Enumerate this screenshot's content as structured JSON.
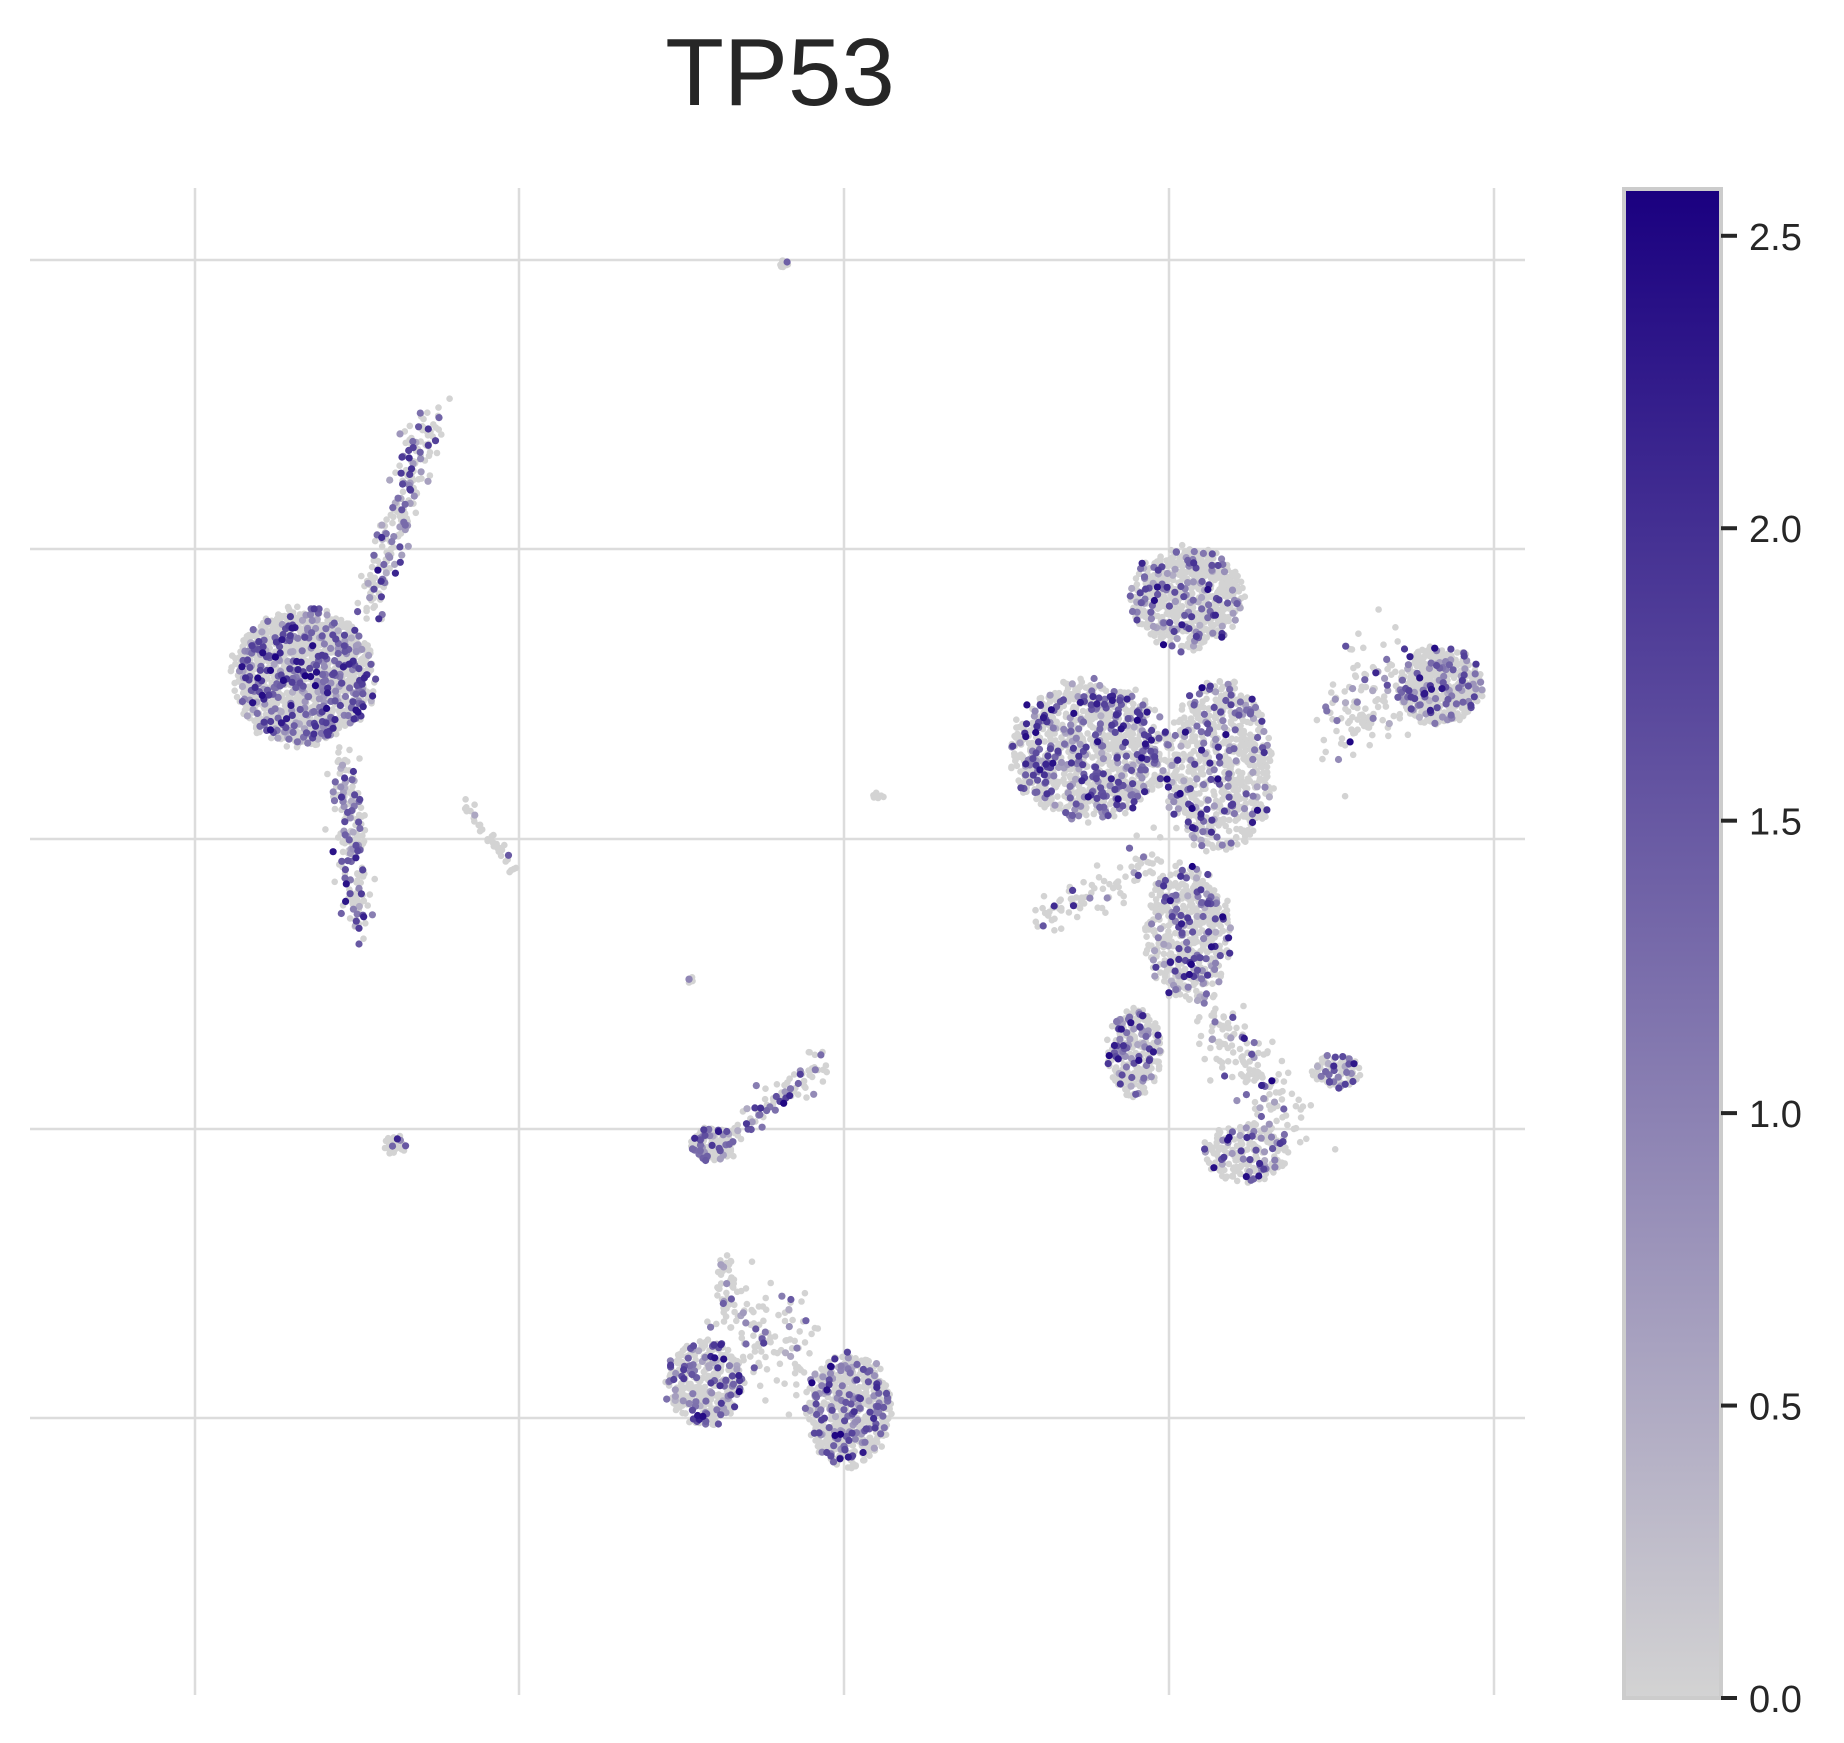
{
  "chart_data": {
    "type": "scatter",
    "title": "TP53",
    "xlabel": "",
    "ylabel": "",
    "grid": true,
    "x_axis": {
      "ticks_visible": false,
      "gridlines": 5
    },
    "y_axis": {
      "ticks_visible": false,
      "gridlines": 4
    },
    "colorbar": {
      "min": 0.0,
      "max": 2.58,
      "ticks": [
        0.0,
        0.5,
        1.0,
        1.5,
        2.0,
        2.5
      ],
      "tick_labels": [
        "0.0",
        "0.5",
        "1.0",
        "1.5",
        "2.0",
        "2.5"
      ],
      "color_low": "#d3d3d3",
      "color_high": "#1a0080"
    },
    "point_color_default": "#d3d3d3",
    "clusters": [
      {
        "kind": "blob",
        "cx": 4.2,
        "cy": 11.1,
        "rx": 1.15,
        "ry": 0.8,
        "n": 1500,
        "expr": 0.25
      },
      {
        "kind": "line",
        "x1": 5.2,
        "y1": 11.8,
        "x2": 6.2,
        "y2": 14.0,
        "w": 0.12,
        "n": 220,
        "expr": 0.3
      },
      {
        "kind": "line",
        "x1": 4.85,
        "y1": 10.2,
        "x2": 5.05,
        "y2": 8.4,
        "w": 0.12,
        "n": 200,
        "expr": 0.3
      },
      {
        "kind": "line",
        "x1": 6.7,
        "y1": 9.7,
        "x2": 7.45,
        "y2": 9.0,
        "w": 0.04,
        "n": 35,
        "expr": 0.1
      },
      {
        "kind": "blob",
        "cx": 5.6,
        "cy": 6.0,
        "rx": 0.2,
        "ry": 0.12,
        "n": 30,
        "expr": 0.1
      },
      {
        "kind": "blob",
        "cx": 11.6,
        "cy": 15.6,
        "rx": 0.08,
        "ry": 0.05,
        "n": 12,
        "expr": 0.1
      },
      {
        "kind": "blob",
        "cx": 13.05,
        "cy": 9.8,
        "rx": 0.1,
        "ry": 0.05,
        "n": 8,
        "expr": 0.1
      },
      {
        "kind": "blob",
        "cx": 10.15,
        "cy": 7.8,
        "rx": 0.05,
        "ry": 0.06,
        "n": 8,
        "expr": 0.2
      },
      {
        "kind": "blob",
        "cx": 10.5,
        "cy": 6.0,
        "rx": 0.35,
        "ry": 0.2,
        "n": 150,
        "expr": 0.2
      },
      {
        "kind": "line",
        "x1": 10.8,
        "y1": 6.1,
        "x2": 12.3,
        "y2": 6.95,
        "w": 0.08,
        "n": 80,
        "expr": 0.2
      },
      {
        "kind": "blob",
        "cx": 10.4,
        "cy": 3.4,
        "rx": 0.65,
        "ry": 0.5,
        "n": 350,
        "expr": 0.25
      },
      {
        "kind": "blob",
        "cx": 12.6,
        "cy": 3.1,
        "rx": 0.7,
        "ry": 0.65,
        "n": 650,
        "expr": 0.25
      },
      {
        "kind": "line",
        "x1": 10.7,
        "y1": 4.1,
        "x2": 11.9,
        "y2": 3.8,
        "w": 0.25,
        "n": 120,
        "expr": 0.2
      },
      {
        "kind": "blob",
        "cx": 10.7,
        "cy": 4.5,
        "rx": 0.15,
        "ry": 0.35,
        "n": 40,
        "expr": 0.2
      },
      {
        "kind": "blob",
        "cx": 17.8,
        "cy": 11.95,
        "rx": 0.9,
        "ry": 0.6,
        "n": 700,
        "expr": 0.2
      },
      {
        "kind": "blob",
        "cx": 21.7,
        "cy": 11.0,
        "rx": 0.7,
        "ry": 0.45,
        "n": 500,
        "expr": 0.15
      },
      {
        "kind": "blob",
        "cx": 16.3,
        "cy": 10.3,
        "rx": 1.3,
        "ry": 0.8,
        "n": 1100,
        "expr": 0.25
      },
      {
        "kind": "blob",
        "cx": 18.3,
        "cy": 10.1,
        "rx": 0.9,
        "ry": 1.0,
        "n": 700,
        "expr": 0.2
      },
      {
        "kind": "blob",
        "cx": 17.8,
        "cy": 8.3,
        "rx": 0.7,
        "ry": 0.8,
        "n": 500,
        "expr": 0.25
      },
      {
        "kind": "line",
        "x1": 20.2,
        "y1": 10.6,
        "x2": 21.0,
        "y2": 11.0,
        "w": 0.3,
        "n": 120,
        "expr": 0.2
      },
      {
        "kind": "line",
        "x1": 15.5,
        "y1": 8.4,
        "x2": 17.3,
        "y2": 9.1,
        "w": 0.12,
        "n": 90,
        "expr": 0.1
      },
      {
        "kind": "blob",
        "cx": 17.0,
        "cy": 7.0,
        "rx": 0.45,
        "ry": 0.5,
        "n": 280,
        "expr": 0.25
      },
      {
        "kind": "line",
        "x1": 18.1,
        "y1": 7.4,
        "x2": 19.5,
        "y2": 6.2,
        "w": 0.2,
        "n": 150,
        "expr": 0.15
      },
      {
        "kind": "blob",
        "cx": 20.1,
        "cy": 6.8,
        "rx": 0.4,
        "ry": 0.2,
        "n": 90,
        "expr": 0.3
      },
      {
        "kind": "blob",
        "cx": 18.7,
        "cy": 5.9,
        "rx": 0.7,
        "ry": 0.35,
        "n": 200,
        "expr": 0.2
      }
    ]
  }
}
